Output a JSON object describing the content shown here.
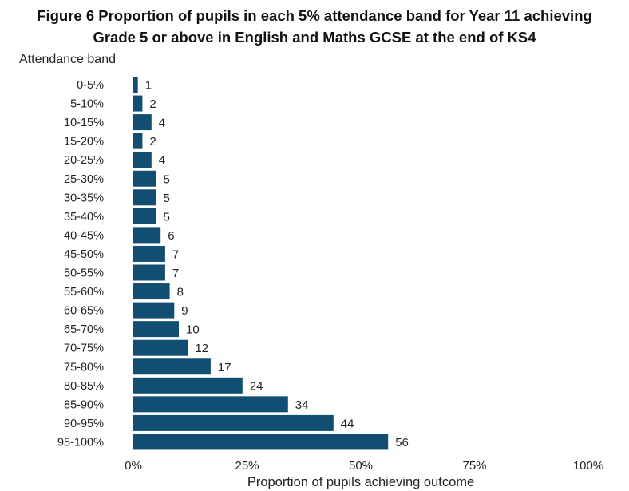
{
  "chart_data": {
    "type": "bar",
    "orientation": "horizontal",
    "title": "Figure 6 Proportion of pupils in each 5% attendance band for Year 11 achieving Grade 5 or above in English and Maths GCSE at the end of KS4",
    "title_lines": [
      "Figure 6 Proportion of pupils in each 5% attendance band for Year 11 achieving",
      "Grade 5 or above in English and Maths GCSE at the end of KS4"
    ],
    "ylabel": "Attendance band",
    "xlabel": "Proportion of pupils achieving outcome",
    "categories": [
      "0-5%",
      "5-10%",
      "10-15%",
      "15-20%",
      "20-25%",
      "25-30%",
      "30-35%",
      "35-40%",
      "40-45%",
      "45-50%",
      "50-55%",
      "55-60%",
      "60-65%",
      "65-70%",
      "70-75%",
      "75-80%",
      "80-85%",
      "85-90%",
      "90-95%",
      "95-100%"
    ],
    "values": [
      1,
      2,
      4,
      2,
      4,
      5,
      5,
      5,
      6,
      7,
      7,
      8,
      9,
      10,
      12,
      17,
      24,
      34,
      44,
      56
    ],
    "xlim": [
      0,
      100
    ],
    "xticks": [
      0,
      25,
      50,
      75,
      100
    ],
    "xtick_labels": [
      "0%",
      "25%",
      "50%",
      "75%",
      "100%"
    ],
    "grid": false,
    "legend": "none",
    "bar_color": "#124E71"
  }
}
